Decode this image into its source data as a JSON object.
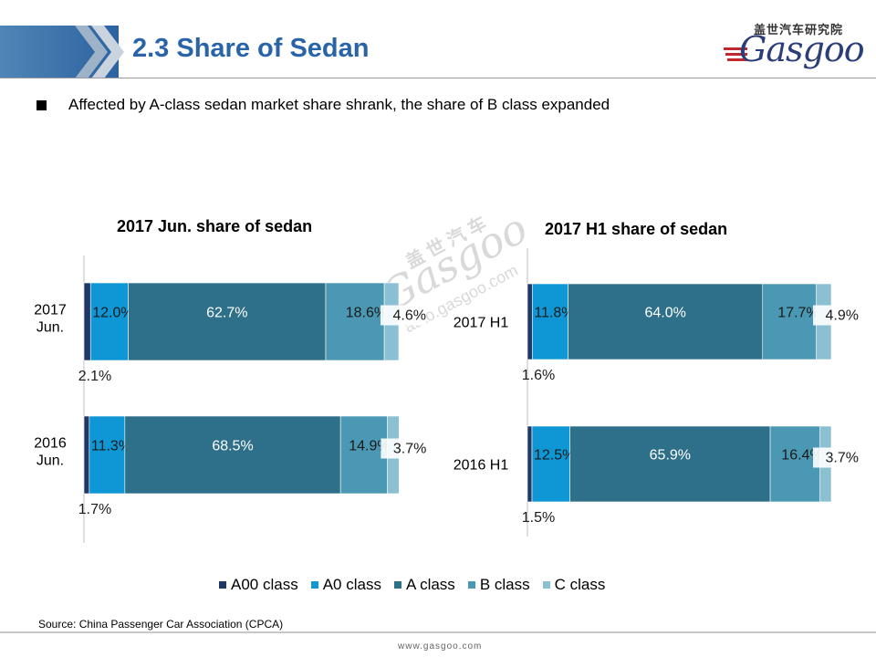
{
  "header": {
    "title": "2.3 Share of Sedan",
    "logo_cn": "盖世汽车研究院",
    "logo_word": "Gasgoo"
  },
  "bullet_text": "Affected by A-class sedan market share shrank, the share of B class expanded",
  "watermark": {
    "cn": "盖 世 汽 车",
    "word": "Gasgoo",
    "url": "auto.gasgoo.com"
  },
  "colors": {
    "header_band": "#2c62a0",
    "title": "#2a64a8",
    "A00 class": "#1f3864",
    "A0 class": "#0e97d4",
    "A class": "#2e6f89",
    "B class": "#4a98b3",
    "C class": "#8bbfd2"
  },
  "chart_data": [
    {
      "type": "bar",
      "orientation": "horizontal",
      "stacked": true,
      "title": "2017 Jun. share of sedan",
      "categories": [
        "2017 Jun.",
        "2016 Jun."
      ],
      "series": [
        {
          "name": "A00 class",
          "values": [
            2.1,
            1.7
          ],
          "labels": [
            "2.1%",
            "1.7%"
          ]
        },
        {
          "name": "A0 class",
          "values": [
            12.0,
            11.3
          ],
          "labels": [
            "12.0%",
            "11.3%"
          ]
        },
        {
          "name": "A class",
          "values": [
            62.7,
            68.5
          ],
          "labels": [
            "62.7%",
            "68.5%"
          ]
        },
        {
          "name": "B class",
          "values": [
            18.6,
            14.9
          ],
          "labels": [
            "18.6%",
            "14.9%"
          ]
        },
        {
          "name": "C class",
          "values": [
            4.6,
            3.7
          ],
          "labels": [
            "4.6%",
            "3.7%"
          ]
        }
      ],
      "xlim": [
        0,
        100
      ]
    },
    {
      "type": "bar",
      "orientation": "horizontal",
      "stacked": true,
      "title": "2017 H1 share of sedan",
      "categories": [
        "2017 H1",
        "2016 H1"
      ],
      "series": [
        {
          "name": "A00 class",
          "values": [
            1.6,
            1.5
          ],
          "labels": [
            "1.6%",
            "1.5%"
          ]
        },
        {
          "name": "A0 class",
          "values": [
            11.8,
            12.5
          ],
          "labels": [
            "11.8%",
            "12.5%"
          ]
        },
        {
          "name": "A class",
          "values": [
            64.0,
            65.9
          ],
          "labels": [
            "64.0%",
            "65.9%"
          ]
        },
        {
          "name": "B class",
          "values": [
            17.7,
            16.4
          ],
          "labels": [
            "17.7%",
            "16.4%"
          ]
        },
        {
          "name": "C class",
          "values": [
            4.9,
            3.7
          ],
          "labels": [
            "4.9%",
            "3.7%"
          ]
        }
      ],
      "xlim": [
        0,
        100
      ]
    }
  ],
  "legend": {
    "placement": "bottom",
    "items": [
      "A00 class",
      "A0 class",
      "A class",
      "B class",
      "C class"
    ]
  },
  "source": "Source: China Passenger Car Association (CPCA)",
  "footer_url": "www.gasgoo.com"
}
